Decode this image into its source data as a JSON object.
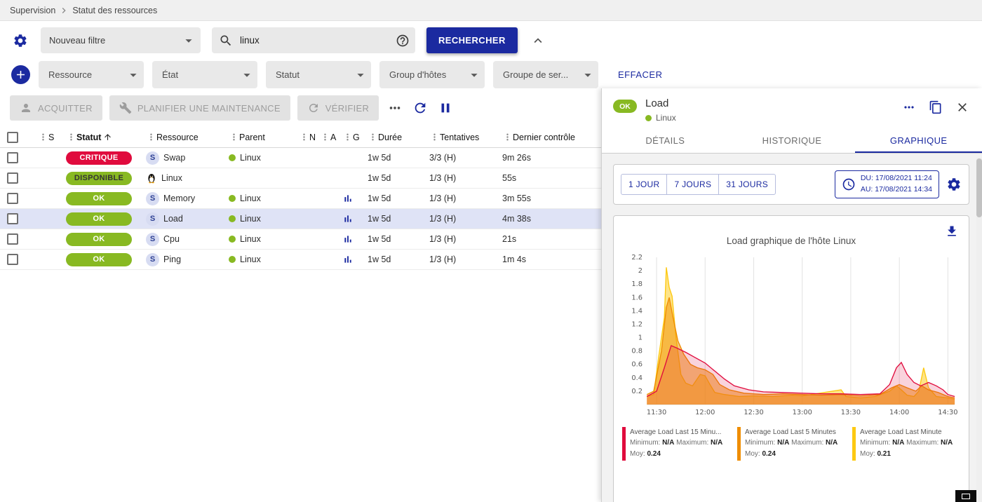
{
  "breadcrumb": {
    "items": [
      "Supervision",
      "Statut des ressources"
    ]
  },
  "filters": {
    "saved_filter": {
      "value": "Nouveau filtre"
    },
    "search": {
      "value": "linux"
    },
    "search_button": "RECHERCHER",
    "clear_button": "EFFACER",
    "criteria": [
      "Ressource",
      "État",
      "Statut",
      "Group d'hôtes",
      "Groupe de ser..."
    ]
  },
  "toolbar": {
    "acknowledge": "ACQUITTER",
    "set_downtime": "PLANIFIER UNE MAINTENANCE",
    "check": "VÉRIFIER"
  },
  "table": {
    "columns": [
      "S",
      "Statut",
      "Ressource",
      "Parent",
      "N",
      "A",
      "G",
      "Durée",
      "Tentatives",
      "Dernier contrôle"
    ],
    "sorted_column": "Statut",
    "rows": [
      {
        "status": "CRITIQUE",
        "status_type": "critical",
        "kind": "service",
        "resource": "Swap",
        "parent": "Linux",
        "has_graph": false,
        "duration": "1w 5d",
        "tries": "3/3 (H)",
        "last_check": "9m 26s",
        "selected": false
      },
      {
        "status": "DISPONIBLE",
        "status_type": "ok",
        "kind": "host",
        "resource": "Linux",
        "parent": "",
        "has_graph": false,
        "duration": "1w 5d",
        "tries": "1/3 (H)",
        "last_check": "55s",
        "selected": false
      },
      {
        "status": "OK",
        "status_type": "ok",
        "kind": "service",
        "resource": "Memory",
        "parent": "Linux",
        "has_graph": true,
        "duration": "1w 5d",
        "tries": "1/3 (H)",
        "last_check": "3m 55s",
        "selected": false
      },
      {
        "status": "OK",
        "status_type": "ok",
        "kind": "service",
        "resource": "Load",
        "parent": "Linux",
        "has_graph": true,
        "duration": "1w 5d",
        "tries": "1/3 (H)",
        "last_check": "4m 38s",
        "selected": true
      },
      {
        "status": "OK",
        "status_type": "ok",
        "kind": "service",
        "resource": "Cpu",
        "parent": "Linux",
        "has_graph": true,
        "duration": "1w 5d",
        "tries": "1/3 (H)",
        "last_check": "21s",
        "selected": false
      },
      {
        "status": "OK",
        "status_type": "ok",
        "kind": "service",
        "resource": "Ping",
        "parent": "Linux",
        "has_graph": true,
        "duration": "1w 5d",
        "tries": "1/3 (H)",
        "last_check": "1m 4s",
        "selected": false
      }
    ]
  },
  "panel": {
    "status": "OK",
    "title": "Load",
    "parent": "Linux",
    "tabs": [
      {
        "label": "DÉTAILS",
        "active": false
      },
      {
        "label": "HISTORIQUE",
        "active": false
      },
      {
        "label": "GRAPHIQUE",
        "active": true
      }
    ],
    "range_buttons": [
      "1 JOUR",
      "7 JOURS",
      "31 JOURS"
    ],
    "period": {
      "from": "DU: 17/08/2021 11:24",
      "to": "AU: 17/08/2021 14:34"
    }
  },
  "chart_data": {
    "type": "area",
    "title": "Load graphique de l'hôte Linux",
    "x_ticks": [
      "11:30",
      "12:00",
      "12:30",
      "13:00",
      "13:30",
      "14:00",
      "14:30"
    ],
    "x_range_hours": [
      11.4,
      14.567
    ],
    "ylim": [
      0,
      2.2
    ],
    "y_tick_step": 0.2,
    "grid": "vertical",
    "legend_position": "bottom",
    "legend_labels": {
      "min": "Minimum:",
      "max": "Maximum:",
      "avg": "Moy:"
    },
    "series": [
      {
        "name": "Average Load Last 15 Minu...",
        "color": "#e00b3d",
        "fill_opacity": 0.18,
        "min": "N/A",
        "max": "N/A",
        "avg": "0.24",
        "points": [
          [
            11.4,
            0.12
          ],
          [
            11.5,
            0.2
          ],
          [
            11.58,
            0.55
          ],
          [
            11.65,
            0.88
          ],
          [
            11.7,
            0.85
          ],
          [
            11.8,
            0.78
          ],
          [
            11.9,
            0.7
          ],
          [
            12.0,
            0.62
          ],
          [
            12.1,
            0.5
          ],
          [
            12.2,
            0.38
          ],
          [
            12.3,
            0.28
          ],
          [
            12.45,
            0.22
          ],
          [
            12.6,
            0.19
          ],
          [
            12.8,
            0.18
          ],
          [
            13.0,
            0.17
          ],
          [
            13.2,
            0.16
          ],
          [
            13.4,
            0.16
          ],
          [
            13.6,
            0.15
          ],
          [
            13.8,
            0.16
          ],
          [
            13.9,
            0.3
          ],
          [
            13.97,
            0.55
          ],
          [
            14.02,
            0.63
          ],
          [
            14.08,
            0.45
          ],
          [
            14.15,
            0.33
          ],
          [
            14.22,
            0.28
          ],
          [
            14.3,
            0.33
          ],
          [
            14.38,
            0.28
          ],
          [
            14.45,
            0.22
          ],
          [
            14.5,
            0.15
          ],
          [
            14.57,
            0.12
          ]
        ]
      },
      {
        "name": "Average Load Last 5 Minutes",
        "color": "#ef8d00",
        "fill_opacity": 0.5,
        "min": "N/A",
        "max": "N/A",
        "avg": "0.24",
        "points": [
          [
            11.4,
            0.15
          ],
          [
            11.47,
            0.2
          ],
          [
            11.55,
            0.8
          ],
          [
            11.6,
            1.45
          ],
          [
            11.63,
            1.6
          ],
          [
            11.67,
            1.3
          ],
          [
            11.72,
            0.95
          ],
          [
            11.78,
            0.75
          ],
          [
            11.85,
            0.6
          ],
          [
            11.92,
            0.55
          ],
          [
            12.0,
            0.52
          ],
          [
            12.08,
            0.45
          ],
          [
            12.15,
            0.3
          ],
          [
            12.25,
            0.22
          ],
          [
            12.4,
            0.17
          ],
          [
            12.6,
            0.15
          ],
          [
            12.8,
            0.16
          ],
          [
            13.0,
            0.15
          ],
          [
            13.2,
            0.14
          ],
          [
            13.4,
            0.15
          ],
          [
            13.6,
            0.13
          ],
          [
            13.8,
            0.15
          ],
          [
            13.92,
            0.25
          ],
          [
            14.0,
            0.3
          ],
          [
            14.08,
            0.25
          ],
          [
            14.17,
            0.2
          ],
          [
            14.23,
            0.28
          ],
          [
            14.3,
            0.22
          ],
          [
            14.4,
            0.18
          ],
          [
            14.5,
            0.12
          ],
          [
            14.57,
            0.1
          ]
        ]
      },
      {
        "name": "Average Load Last Minute",
        "color": "#fdc912",
        "fill_opacity": 0.5,
        "min": "N/A",
        "max": "N/A",
        "avg": "0.21",
        "points": [
          [
            11.4,
            0.12
          ],
          [
            11.47,
            0.15
          ],
          [
            11.52,
            0.7
          ],
          [
            11.58,
            1.3
          ],
          [
            11.6,
            2.05
          ],
          [
            11.63,
            1.75
          ],
          [
            11.66,
            1.62
          ],
          [
            11.7,
            1.0
          ],
          [
            11.75,
            0.45
          ],
          [
            11.8,
            0.32
          ],
          [
            11.87,
            0.28
          ],
          [
            11.95,
            0.45
          ],
          [
            12.0,
            0.43
          ],
          [
            12.05,
            0.3
          ],
          [
            12.1,
            0.18
          ],
          [
            12.2,
            0.15
          ],
          [
            12.35,
            0.12
          ],
          [
            12.5,
            0.13
          ],
          [
            12.7,
            0.12
          ],
          [
            12.9,
            0.14
          ],
          [
            13.0,
            0.13
          ],
          [
            13.4,
            0.22
          ],
          [
            13.45,
            0.12
          ],
          [
            13.6,
            0.1
          ],
          [
            13.75,
            0.12
          ],
          [
            13.9,
            0.2
          ],
          [
            13.97,
            0.28
          ],
          [
            14.02,
            0.22
          ],
          [
            14.08,
            0.14
          ],
          [
            14.15,
            0.12
          ],
          [
            14.2,
            0.2
          ],
          [
            14.25,
            0.55
          ],
          [
            14.3,
            0.25
          ],
          [
            14.38,
            0.12
          ],
          [
            14.5,
            0.1
          ],
          [
            14.57,
            0.08
          ]
        ]
      }
    ],
    "draw_order": [
      2,
      1,
      0
    ]
  },
  "colors": {
    "primary": "#1b2aa0",
    "critical": "#e00b3d",
    "ok": "#88b922",
    "selected_row": "#dfe3f6"
  }
}
